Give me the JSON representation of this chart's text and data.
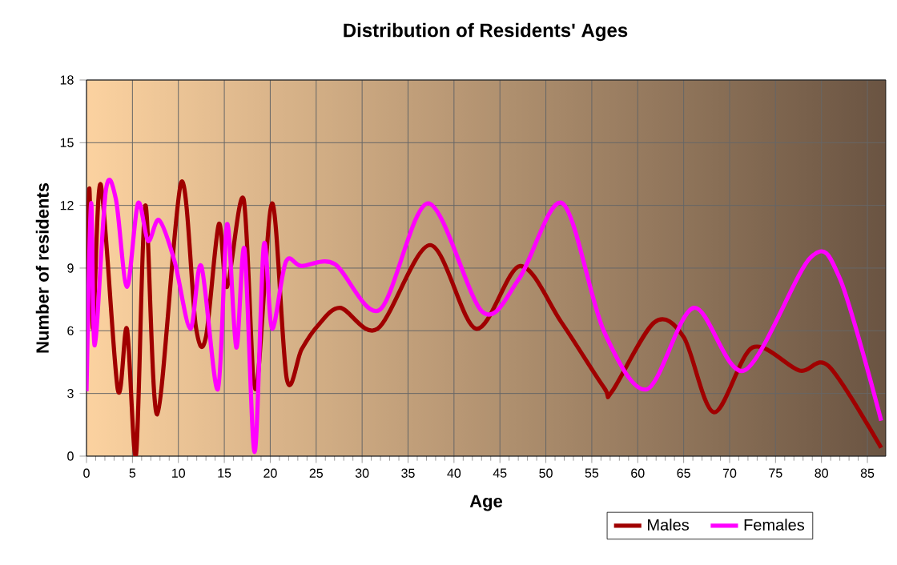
{
  "chart_data": {
    "type": "line",
    "title": "Distribution of Residents' Ages",
    "xlabel": "Age",
    "ylabel": "Number of residents",
    "xlim": [
      0,
      87
    ],
    "ylim": [
      0,
      18
    ],
    "xticks": [
      0,
      5,
      10,
      15,
      20,
      25,
      30,
      35,
      40,
      45,
      50,
      55,
      60,
      65,
      70,
      75,
      80,
      85
    ],
    "yticks": [
      0,
      3,
      6,
      9,
      12,
      15,
      18
    ],
    "grid": true,
    "legend": "bottom right",
    "marker": "none",
    "line_style": "solid",
    "series": [
      {
        "name": "Males",
        "color": "#a00000",
        "x": [
          0,
          0.3,
          0.7,
          1.55,
          3.4,
          4.4,
          5.4,
          6.4,
          7.7,
          10.3,
          11.9,
          13,
          14.4,
          15.3,
          17.1,
          18.4,
          20.2,
          21.8,
          23.4,
          25.1,
          27.6,
          31.7,
          37.4,
          42.4,
          47.2,
          51.7,
          56.3,
          57.2,
          61.8,
          65,
          68.3,
          72.5,
          77.6,
          80.8,
          86.5
        ],
        "values": [
          4.0,
          12.8,
          6.1,
          13,
          3.2,
          6.1,
          0.1,
          12,
          2,
          13.1,
          6.2,
          5.7,
          11.1,
          8.1,
          12.3,
          3.2,
          12.1,
          3.7,
          5.1,
          6.2,
          7.1,
          6.1,
          10.1,
          6.1,
          9.1,
          6.4,
          3.3,
          3.1,
          6.4,
          5.7,
          2.1,
          5.2,
          4.1,
          4.3,
          0.4
        ]
      },
      {
        "name": "Females",
        "color": "#ff00ff",
        "x": [
          0,
          0.5,
          0.9,
          2.1,
          3.2,
          4.4,
          5.6,
          6.7,
          7.9,
          9.6,
          11.3,
          12.5,
          14.3,
          15.3,
          16.3,
          17.2,
          18.3,
          19.3,
          20.2,
          21.7,
          23.4,
          27,
          31.9,
          37.2,
          43.1,
          47.1,
          51.8,
          56.3,
          61,
          66.1,
          71.6,
          78.8,
          82,
          86.5
        ],
        "values": [
          3.1,
          12.1,
          5.3,
          12.7,
          12.3,
          8.1,
          12.1,
          10.3,
          11.3,
          9.3,
          6.1,
          9.1,
          3.2,
          11.1,
          5.2,
          9.9,
          0.2,
          10.1,
          6.1,
          9.3,
          9.1,
          9.2,
          7.0,
          12.1,
          6.9,
          8.5,
          12.1,
          6.0,
          3.2,
          7.1,
          4.1,
          9.5,
          8.5,
          1.7
        ]
      }
    ]
  }
}
